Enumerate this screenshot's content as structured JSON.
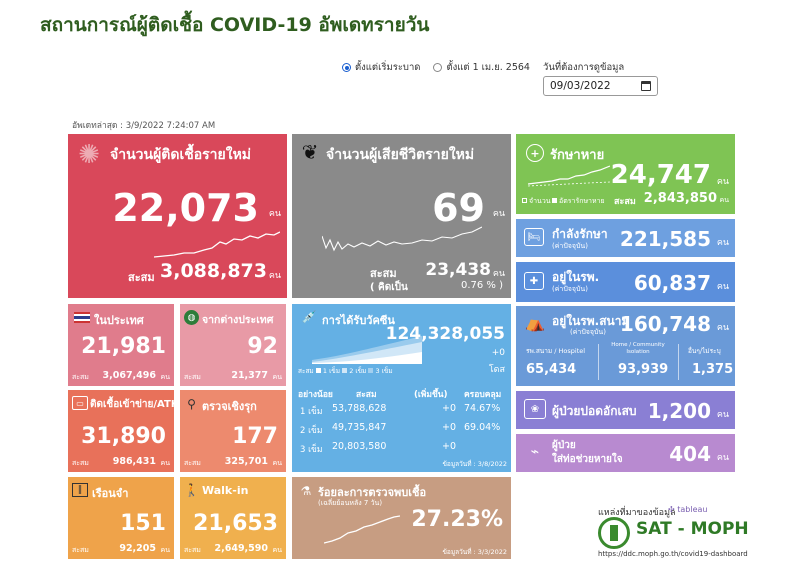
{
  "title": "สถานการณ์ผู้ติดเชื้อ COVID-19 อัพเดทรายวัน",
  "controls": {
    "radio1": "ตั้งแต่เริ่มระบาด",
    "radio2": "ตั้งแต่ 1 เม.ย. 2564",
    "date_label": "วันที่ต้องการดูข้อมูล",
    "date_value": "09/03/2022"
  },
  "updated": "อัพเดทล่าสุด : 3/9/2022 7:24:07 AM",
  "new_cases": {
    "label": "จำนวนผู้ติดเชื้อรายใหม่",
    "value": "22,073",
    "unit": "คน",
    "cum_label": "สะสม",
    "cum_value": "3,088,873",
    "cum_unit": "คน"
  },
  "deaths": {
    "label": "จำนวนผู้เสียชีวิตรายใหม่",
    "value": "69",
    "unit": "คน",
    "cum_label": "สะสม",
    "cum_value": "23,438",
    "cum_unit": "คน",
    "pct_label": "( คิดเป็น",
    "pct_value": "0.76 % )"
  },
  "recovered": {
    "label": "รักษาหาย",
    "value": "24,747",
    "unit": "คน",
    "legend1": "จำนวน",
    "legend2": "อัตรารักษาหาย",
    "cum_label": "สะสม",
    "cum_value": "2,843,850",
    "cum_unit": "คน"
  },
  "treating": {
    "label": "กำลังรักษา",
    "sub": "(ค่าปัจจุบัน)",
    "value": "221,585",
    "unit": "คน"
  },
  "hospital": {
    "label": "อยู่ในรพ.",
    "sub": "(ค่าปัจจุบัน)",
    "value": "60,837",
    "unit": "คน"
  },
  "field_hosp": {
    "label": "อยู่ในรพ.สนาม",
    "sub": "(ค่าปัจจุบัน)",
    "value": "160,748",
    "unit": "คน",
    "c1_label": "รพ.สนาม / Hospitel",
    "c1_value": "65,434",
    "c2_label": "Home / Community Isolation",
    "c2_value": "93,939",
    "c3_label": "อื่นๆ/ไม่ระบุ",
    "c3_value": "1,375"
  },
  "pneumonia": {
    "label": "ผู้ป่วยปอดอักเสบ",
    "value": "1,200",
    "unit": "คน"
  },
  "ventilator": {
    "label": "ผู้ป่วย",
    "label2": "ใส่ท่อช่วยหายใจ",
    "value": "404",
    "unit": "คน"
  },
  "domestic": {
    "label": "ในประเทศ",
    "value": "21,981",
    "cum_label": "สะสม",
    "cum_value": "3,067,496",
    "cum_unit": "คน"
  },
  "abroad": {
    "label": "จากต่างประเทศ",
    "value": "92",
    "cum_label": "สะสม",
    "cum_value": "21,377",
    "cum_unit": "คน"
  },
  "atk": {
    "label": "ติดเชื้อเข้าข่าย/ATK",
    "value": "31,890",
    "cum_label": "สะสม",
    "cum_value": "986,431",
    "cum_unit": "คน"
  },
  "proactive": {
    "label": "ตรวจเชิงรุก",
    "value": "177",
    "cum_label": "สะสม",
    "cum_value": "325,701",
    "cum_unit": "คน"
  },
  "prison": {
    "label": "เรือนจำ",
    "value": "151",
    "cum_label": "สะสม",
    "cum_value": "92,205",
    "cum_unit": "คน"
  },
  "walkin": {
    "label": "Walk-in",
    "value": "21,653",
    "cum_label": "สะสม",
    "cum_value": "2,649,590",
    "cum_unit": "คน"
  },
  "vaccine": {
    "label": "การได้รับวัคซีน",
    "total": "124,328,055",
    "added": "+0",
    "added_unit": "โดส",
    "legend_prefix": "สะสม",
    "legend1": "1 เข็ม",
    "legend2": "2 เข็ม",
    "legend3": "3 เข็ม",
    "headers": [
      "อย่างน้อย",
      "สะสม",
      "(เพิ่มขึ้น)",
      "ครอบคลุม"
    ],
    "rows": [
      [
        "1 เข็ม",
        "53,788,628",
        "+0",
        "74.67%"
      ],
      [
        "2 เข็ม",
        "49,735,847",
        "+0",
        "69.04%"
      ],
      [
        "3 เข็ม",
        "20,803,580",
        "+0",
        ""
      ]
    ],
    "note": "ข้อมูลวันที่ : 3/8/2022"
  },
  "positivity": {
    "label": "ร้อยละการตรวจพบเชื้อ",
    "sub": "(เฉลี่ยย้อนหลัง 7 วัน)",
    "value": "27.23%",
    "note": "ข้อมูลวันที่ : 3/3/2022"
  },
  "source": {
    "label": "แหล่งที่มาของข้อมูล",
    "brand": "tableau",
    "org": "SAT - MOPH",
    "url": "https://ddc.moph.go.th/covid19-dashboard"
  },
  "colors": {
    "title": "#2f5d1f",
    "new_cases": "#d9485a",
    "deaths": "#8a8a8a",
    "recovered": "#7fc454",
    "vaccine": "#64b0e4"
  }
}
